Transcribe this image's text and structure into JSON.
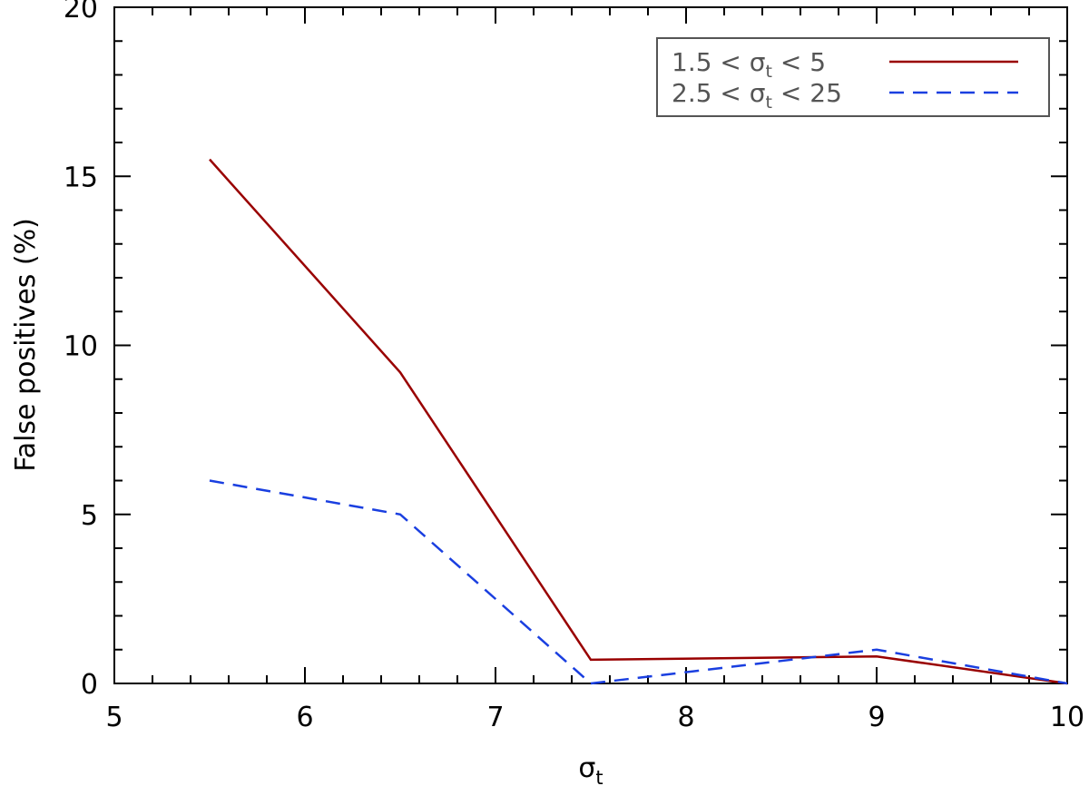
{
  "chart_data": {
    "type": "line",
    "xlabel": "σ",
    "xlabel_sub": "t",
    "ylabel": "False positives (%)",
    "xlim": [
      5,
      10
    ],
    "ylim": [
      0,
      20
    ],
    "x_ticks": [
      "5",
      "6",
      "7",
      "8",
      "9",
      "10"
    ],
    "y_ticks": [
      "0",
      "5",
      "10",
      "15",
      "20"
    ],
    "legend_position": "top-right",
    "series": [
      {
        "name": "1.5 < σt < 5",
        "name_parts": [
          "1.5 < σ",
          "t",
          " <  5"
        ],
        "color": "#990000",
        "style": "solid",
        "x": [
          5.5,
          6.5,
          7.5,
          9.0,
          10.0
        ],
        "y": [
          15.5,
          9.2,
          0.7,
          0.8,
          0.0
        ]
      },
      {
        "name": "2.5 < σt < 25",
        "name_parts": [
          "2.5 < σ",
          "t",
          " < 25"
        ],
        "color": "#1a3fe0",
        "style": "dashed",
        "x": [
          5.5,
          6.5,
          7.5,
          9.0,
          10.0
        ],
        "y": [
          6.0,
          5.0,
          0.0,
          1.0,
          0.0
        ]
      }
    ]
  }
}
